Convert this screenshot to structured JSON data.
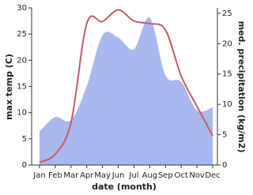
{
  "chart_data": {
    "type": "line-area",
    "x_label": "date (month)",
    "y_label": "max temp (C)",
    "y2_label": "med. precipitation (kg/m2)",
    "categories": [
      "Jan",
      "Feb",
      "Mar",
      "Apr",
      "May",
      "Jun",
      "Jul",
      "Aug",
      "Sep",
      "Oct",
      "Nov",
      "Dec"
    ],
    "series": [
      {
        "name": "max temp",
        "color": "#c75b5f",
        "values": [
          0.5,
          2.1,
          8.1,
          27,
          27.4,
          29.6,
          27.5,
          27,
          25.8,
          17,
          11.2,
          5.6
        ]
      },
      {
        "name": "med. precipitation",
        "color": "#aab8f0",
        "axis": "y2",
        "values": [
          5.5,
          7.9,
          7.4,
          13,
          21.4,
          21,
          19.1,
          24.3,
          14.8,
          13.7,
          9,
          9.5
        ]
      }
    ],
    "ylim": [
      0,
      30
    ],
    "yticks": [
      0,
      5,
      10,
      15,
      20,
      25,
      30
    ],
    "y2lim": [
      0,
      25.9
    ],
    "y2ticks": [
      0,
      5,
      10,
      15,
      20,
      25
    ]
  }
}
